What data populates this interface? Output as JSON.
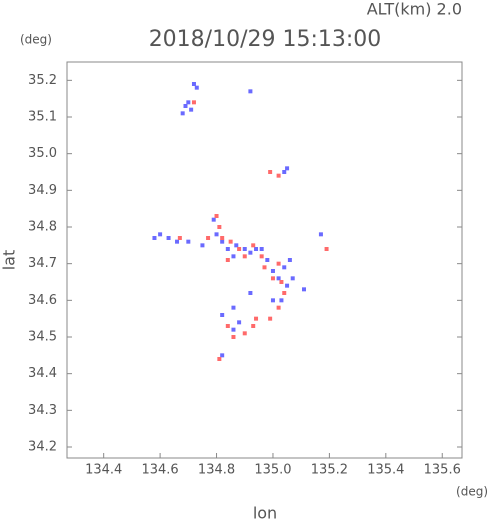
{
  "chart_data": {
    "type": "scatter",
    "title": "2018/10/29 15:13:00",
    "subtitle": "ALT(km) 2.0",
    "x_label": "lon",
    "y_label": "lat",
    "x_unit": "(deg)",
    "y_unit": "(deg)",
    "xlim": [
      134.27,
      135.67
    ],
    "ylim": [
      34.17,
      35.25
    ],
    "xticks": [
      134.4,
      134.6,
      134.8,
      {
        "value": 135,
        "label": "135.0"
      },
      135.2,
      135.4,
      135.6
    ],
    "yticks": [
      34.2,
      34.3,
      34.4,
      34.5,
      34.6,
      34.7,
      34.8,
      34.9,
      {
        "value": 35,
        "label": "35.0"
      },
      35.1,
      35.2
    ],
    "series": [
      {
        "color": "#6a6aff",
        "x": [
          134.72,
          134.73,
          134.7,
          134.69,
          134.71,
          134.68,
          134.92,
          135.05,
          135.04,
          134.58,
          134.6,
          134.63,
          134.66,
          134.7,
          134.75,
          134.79,
          134.8,
          134.82,
          134.84,
          134.86,
          134.87,
          134.9,
          134.92,
          134.94,
          134.96,
          134.98,
          135.0,
          135.02,
          135.04,
          135.06,
          135.07,
          135.05,
          135.03,
          135.0,
          134.92,
          134.86,
          134.82,
          134.86,
          134.88,
          134.82,
          135.11,
          135.17
        ],
        "values": [
          35.19,
          35.18,
          35.14,
          35.13,
          35.12,
          35.11,
          35.17,
          34.96,
          34.95,
          34.77,
          34.78,
          34.77,
          34.76,
          34.76,
          34.75,
          34.82,
          34.78,
          34.76,
          34.74,
          34.72,
          34.75,
          34.74,
          34.73,
          34.74,
          34.74,
          34.71,
          34.68,
          34.66,
          34.69,
          34.71,
          34.66,
          34.64,
          34.6,
          34.6,
          34.62,
          34.58,
          34.56,
          34.52,
          34.54,
          34.45,
          34.63,
          34.78
        ]
      },
      {
        "color": "#ff6a6a",
        "x": [
          134.72,
          134.99,
          135.02,
          134.77,
          134.8,
          134.81,
          134.82,
          134.85,
          134.88,
          134.9,
          134.93,
          134.96,
          134.97,
          135.0,
          135.02,
          135.03,
          135.04,
          135.02,
          134.99,
          134.86,
          134.9,
          134.93,
          134.94,
          134.84,
          134.84,
          135.19,
          134.67,
          134.81
        ],
        "values": [
          35.14,
          34.95,
          34.94,
          34.77,
          34.83,
          34.8,
          34.77,
          34.76,
          34.74,
          34.72,
          34.75,
          34.72,
          34.69,
          34.66,
          34.7,
          34.65,
          34.62,
          34.58,
          34.55,
          34.5,
          34.51,
          34.53,
          34.55,
          34.53,
          34.71,
          34.74,
          34.77,
          34.44
        ]
      }
    ]
  }
}
